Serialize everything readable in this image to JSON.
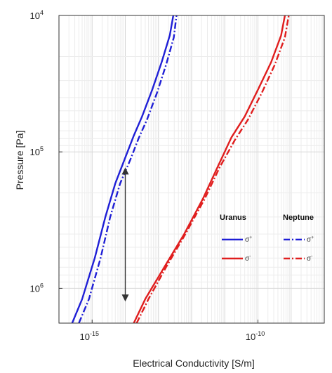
{
  "chart_data": {
    "type": "line",
    "xlabel": "Electrical Conductivity [S/m]",
    "ylabel": "Pressure [Pa]",
    "x_scale": "log",
    "y_scale": "log",
    "y_inverted": true,
    "xlim": [
      1e-16,
      1e-08
    ],
    "ylim": [
      10000,
      1800000
    ],
    "grid": true,
    "x_ticks": [
      {
        "value": 1e-15,
        "base": "10",
        "exp": "-15"
      },
      {
        "value": 1e-10,
        "base": "10",
        "exp": "-10"
      }
    ],
    "y_ticks": [
      {
        "value": 10000,
        "base": "10",
        "exp": "4"
      },
      {
        "value": 100000,
        "base": "10",
        "exp": "5"
      },
      {
        "value": 1000000,
        "base": "10",
        "exp": "6"
      }
    ],
    "legend": {
      "placement": "right",
      "columns": [
        "Uranus",
        "Neptune"
      ],
      "rows": [
        {
          "symbol_base": "σ",
          "symbol_exp": "+",
          "color": "#1f1fd6"
        },
        {
          "symbol_base": "σ",
          "symbol_exp": "-",
          "color": "#e01e1e"
        }
      ]
    },
    "series": [
      {
        "planet": "Uranus",
        "sign": "+",
        "color": "#1f1fd6",
        "dash": "solid",
        "points": [
          [
            2.5e-16,
            1800000.0
          ],
          [
            5e-16,
            1200000.0
          ],
          [
            1.2e-15,
            600000.0
          ],
          [
            2.5e-15,
            300000.0
          ],
          [
            5e-15,
            170000.0
          ],
          [
            1e-14,
            110000.0
          ],
          [
            1.8e-14,
            76000.0
          ],
          [
            3.2e-14,
            55000.0
          ],
          [
            6.5e-14,
            35000.0
          ],
          [
            1.25e-13,
            22000.0
          ],
          [
            2.2e-13,
            14000.0
          ],
          [
            2.8e-13,
            10000.0
          ]
        ]
      },
      {
        "planet": "Neptune",
        "sign": "+",
        "color": "#1f1fd6",
        "dash": "dashdot",
        "points": [
          [
            4e-16,
            1800000.0
          ],
          [
            8e-16,
            1200000.0
          ],
          [
            1.8e-15,
            600000.0
          ],
          [
            3.5e-15,
            300000.0
          ],
          [
            7e-15,
            170000.0
          ],
          [
            1.4e-14,
            115000.0
          ],
          [
            2.5e-14,
            80000.0
          ],
          [
            4.5e-14,
            58000.0
          ],
          [
            9e-14,
            37000.0
          ],
          [
            1.7e-13,
            23000.0
          ],
          [
            2.9e-13,
            14500.0
          ],
          [
            3.5e-13,
            10000.0
          ]
        ]
      },
      {
        "planet": "Uranus",
        "sign": "-",
        "color": "#e01e1e",
        "dash": "solid",
        "points": [
          [
            1.8e-14,
            1800000.0
          ],
          [
            4e-14,
            1200000.0
          ],
          [
            1.5e-13,
            700000.0
          ],
          [
            6e-13,
            400000.0
          ],
          [
            2.2e-12,
            220000.0
          ],
          [
            6e-12,
            130000.0
          ],
          [
            1.6e-11,
            78000.0
          ],
          [
            4e-11,
            55000.0
          ],
          [
            1e-10,
            35000.0
          ],
          [
            2.5e-10,
            22000.0
          ],
          [
            5e-10,
            14000.0
          ],
          [
            6.5e-10,
            10000.0
          ]
        ]
      },
      {
        "planet": "Neptune",
        "sign": "-",
        "color": "#e01e1e",
        "dash": "dashdot",
        "points": [
          [
            2.2e-14,
            1800000.0
          ],
          [
            5e-14,
            1200000.0
          ],
          [
            1.7e-13,
            700000.0
          ],
          [
            6.5e-13,
            400000.0
          ],
          [
            2.5e-12,
            220000.0
          ],
          [
            7e-12,
            130000.0
          ],
          [
            2e-11,
            82000.0
          ],
          [
            5e-11,
            58000.0
          ],
          [
            1.3e-10,
            37000.0
          ],
          [
            3.2e-10,
            23000.0
          ],
          [
            6.5e-10,
            14500.0
          ],
          [
            8.5e-10,
            10000.0
          ]
        ]
      }
    ],
    "annotations": [
      {
        "type": "double-arrow",
        "color": "#333333",
        "x": 1e-14,
        "from": 130000.0,
        "to": 1250000.0
      }
    ]
  }
}
